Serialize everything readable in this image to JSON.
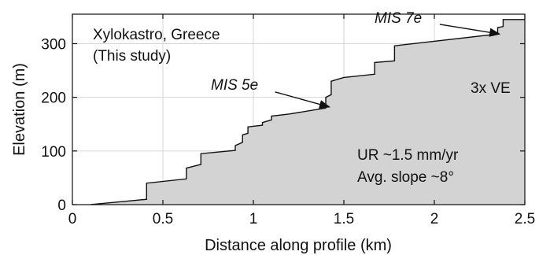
{
  "chart_data": {
    "type": "area",
    "xlabel": "Distance along profile (km)",
    "ylabel": "Elevation (m)",
    "xlim": [
      0,
      2.5
    ],
    "ylim": [
      0,
      355
    ],
    "xticks": [
      0,
      0.5,
      1,
      1.5,
      2,
      2.5
    ],
    "xtick_labels": [
      "0",
      "0.5",
      "1",
      "1.5",
      "2",
      "2.5"
    ],
    "yticks": [
      0,
      100,
      200,
      300
    ],
    "ytick_labels": [
      "0",
      "100",
      "200",
      "300"
    ],
    "grid": true,
    "fill_color": "#d3d3d3",
    "profile": {
      "x": [
        0.1,
        0.41,
        0.41,
        0.63,
        0.63,
        0.71,
        0.71,
        0.9,
        0.9,
        0.94,
        0.94,
        0.97,
        0.97,
        1.05,
        1.05,
        1.1,
        1.1,
        1.2,
        1.2,
        1.4,
        1.4,
        1.43,
        1.43,
        1.5,
        1.5,
        1.67,
        1.67,
        1.78,
        1.78,
        2.35,
        2.35,
        2.38,
        2.38,
        2.5
      ],
      "y": [
        0,
        10,
        40,
        48,
        68,
        75,
        95,
        101,
        110,
        116,
        130,
        133,
        145,
        148,
        153,
        158,
        165,
        169,
        169,
        180,
        200,
        205,
        230,
        237,
        237,
        243,
        265,
        268,
        296,
        318,
        330,
        332,
        345,
        345
      ]
    },
    "annotations": {
      "location_line1": "Xylokastro, Greece",
      "location_line2": "(This study)",
      "mis5e": "MIS 5e",
      "mis7e": "MIS 7e",
      "ve": "3x VE",
      "uplift_rate": "UR ~1.5 mm/yr",
      "avg_slope": "Avg. slope ~8°"
    },
    "arrows": [
      {
        "label": "MIS 5e",
        "from": [
          1.12,
          210
        ],
        "to": [
          1.42,
          182
        ]
      },
      {
        "label": "MIS 7e",
        "from": [
          2.03,
          336
        ],
        "to": [
          2.36,
          318
        ]
      }
    ]
  }
}
